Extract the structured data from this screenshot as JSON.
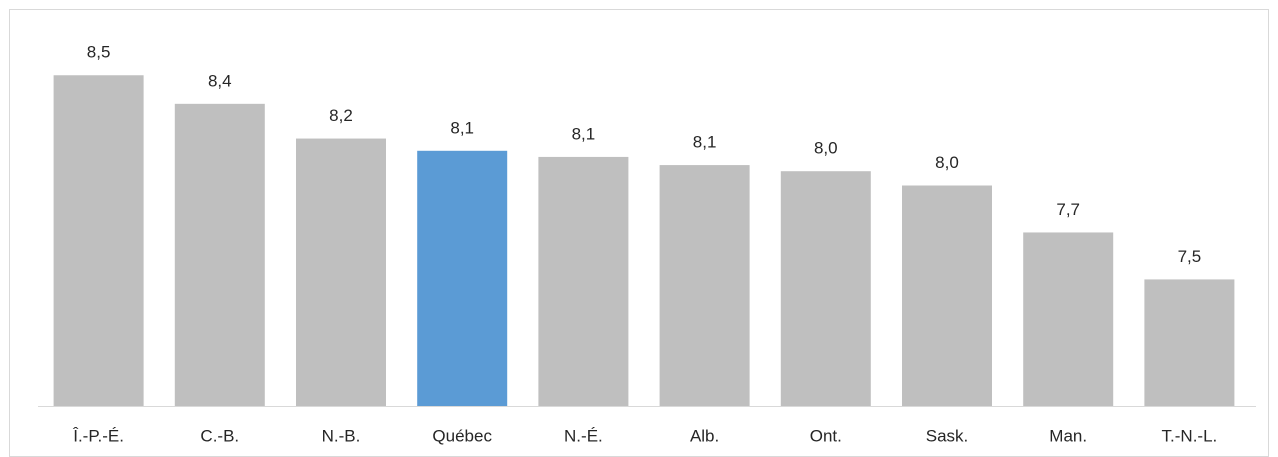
{
  "chart_data": {
    "type": "bar",
    "categories": [
      "Î.-P.-É.",
      "C.-B.",
      "N.-B.",
      "Québec",
      "N.-É.",
      "Alb.",
      "Ont.",
      "Sask.",
      "Man.",
      "T.-N.-L."
    ],
    "values": [
      8.5,
      8.36,
      8.19,
      8.13,
      8.1,
      8.06,
      8.03,
      7.96,
      7.73,
      7.5
    ],
    "value_labels": [
      "8,5",
      "8,4",
      "8,2",
      "8,1",
      "8,1",
      "8,1",
      "8,0",
      "8,0",
      "7,7",
      "7,5"
    ],
    "colors": [
      "#bfbfbf",
      "#bfbfbf",
      "#bfbfbf",
      "#5b9bd5",
      "#bfbfbf",
      "#bfbfbf",
      "#bfbfbf",
      "#bfbfbf",
      "#bfbfbf",
      "#bfbfbf"
    ],
    "ylim": [
      6.88,
      8.8
    ]
  }
}
